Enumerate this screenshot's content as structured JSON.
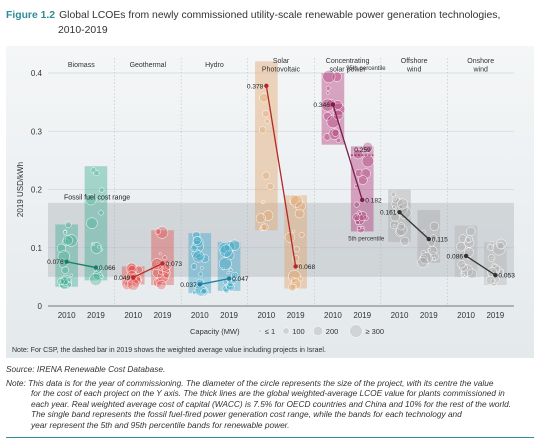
{
  "header": {
    "figure_number": "Figure 1.2",
    "title_line1": "Global LCOEs from newly commissioned utility-scale renewable power generation technologies,",
    "title_line2": "2010-2019"
  },
  "chart_data": {
    "type": "scatter",
    "ylabel": "2019 USD/kWh",
    "ylim": [
      0,
      0.45
    ],
    "yticks": [
      "0",
      "0.1",
      "0.2",
      "0.3",
      "0.4"
    ],
    "fossil_band": {
      "label": "Fossil fuel cost range",
      "low": 0.05,
      "high": 0.177
    },
    "technologies": [
      {
        "name_lines": [
          "Biomass"
        ],
        "years": [
          "2010",
          "2019"
        ],
        "weighted_avg": [
          0.076,
          0.066
        ],
        "labels": [
          "0.076",
          "0.066"
        ],
        "band_2010": [
          0.033,
          0.14
        ],
        "band_2019": [
          0.044,
          0.24
        ],
        "color": "#3fae93"
      },
      {
        "name_lines": [
          "Geothermal"
        ],
        "years": [
          "2010",
          "2019"
        ],
        "weighted_avg": [
          0.049,
          0.073
        ],
        "labels": [
          "0.049",
          "0.073"
        ],
        "band_2010": [
          0.037,
          0.068
        ],
        "band_2019": [
          0.036,
          0.13
        ],
        "color": "#e2514c"
      },
      {
        "name_lines": [
          "Hydro"
        ],
        "years": [
          "2010",
          "2019"
        ],
        "weighted_avg": [
          0.037,
          0.047
        ],
        "labels": [
          "0.037",
          "0.047"
        ],
        "band_2010": [
          0.022,
          0.125
        ],
        "band_2019": [
          0.026,
          0.11
        ],
        "color": "#36a5c7"
      },
      {
        "name_lines": [
          "Solar",
          "Photovoltaic"
        ],
        "years": [
          "2010",
          "2019"
        ],
        "weighted_avg": [
          0.378,
          0.068
        ],
        "labels": [
          "0.378",
          "0.068"
        ],
        "band_2010": [
          0.13,
          0.42
        ],
        "band_2019": [
          0.03,
          0.19
        ],
        "color": "#e3a366"
      },
      {
        "name_lines": [
          "Concentrating",
          "solar power"
        ],
        "years": [
          "2010",
          "2019"
        ],
        "weighted_avg": [
          0.346,
          0.182
        ],
        "labels": [
          "0.346",
          "0.182"
        ],
        "dashed_2019": 0.259,
        "dashed_label": "0.259",
        "band_2010": [
          0.277,
          0.4
        ],
        "band_2019": [
          0.128,
          0.274
        ],
        "band_labels": [
          "95th percentile",
          "5th percentile"
        ],
        "color": "#b03374"
      },
      {
        "name_lines": [
          "Offshore",
          "wind"
        ],
        "years": [
          "2010",
          "2019"
        ],
        "weighted_avg": [
          0.161,
          0.115
        ],
        "labels": [
          "0.161",
          "0.115"
        ],
        "band_2010": [
          0.11,
          0.2
        ],
        "band_2019": [
          0.074,
          0.165
        ],
        "color": "#a6a6a6"
      },
      {
        "name_lines": [
          "Onshore",
          "wind"
        ],
        "years": [
          "2010",
          "2019"
        ],
        "weighted_avg": [
          0.086,
          0.053
        ],
        "labels": [
          "0.086",
          "0.053"
        ],
        "band_2010": [
          0.05,
          0.138
        ],
        "band_2019": [
          0.036,
          0.11
        ],
        "color": "#b2b2b2"
      }
    ],
    "legend": {
      "title": "Capacity (MW)",
      "items": [
        "≤ 1",
        "100",
        "200",
        "≥ 300"
      ]
    },
    "note": "Note: For CSP, the dashed bar in 2019 shows the weighted average value including projects in Israel."
  },
  "source": "Source: IRENA Renewable Cost Database.",
  "note_label": "Note:",
  "footnote_lines": [
    "This data is for the year of commissioning. The diameter of the circle represents the size of the project, with its centre the value",
    "for the cost of each project on the Y axis. The thick lines are the global weighted-average LCOE value for plants commissioned in",
    "each year. Real weighted average cost of capital (WACC) is 7.5% for OECD countries and China and 10% for the rest of the world.",
    "The single band represents the fossil fuel-fired power generation cost range, while the bands for each technology and",
    "year represent the 5th and 95th percentile bands for renewable power."
  ]
}
